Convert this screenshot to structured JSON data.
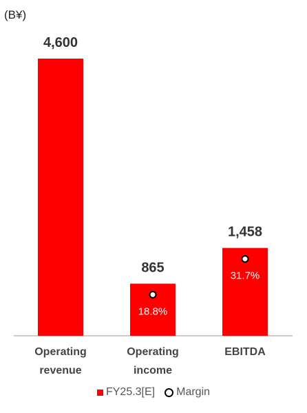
{
  "unit_label": "(B¥)",
  "chart_data": {
    "type": "bar",
    "categories": [
      [
        "Operating",
        "revenue"
      ],
      [
        "Operating",
        "income"
      ],
      [
        "EBITDA"
      ]
    ],
    "series": [
      {
        "name": "FY25.3[E]",
        "values": [
          4600,
          865,
          1458
        ],
        "value_labels": [
          "4,600",
          "865",
          "1,458"
        ]
      }
    ],
    "margin": {
      "name": "Margin",
      "values": [
        null,
        18.8,
        31.7
      ],
      "labels": [
        null,
        "18.8%",
        "31.7%"
      ]
    },
    "ylim": [
      0,
      4600
    ],
    "grid": false,
    "legend_position": "bottom",
    "colors": {
      "bar": "#ff0000",
      "text": "#333333",
      "axis": "#999999"
    }
  },
  "legend": {
    "series_label": "FY25.3[E]",
    "margin_label": "Margin"
  }
}
